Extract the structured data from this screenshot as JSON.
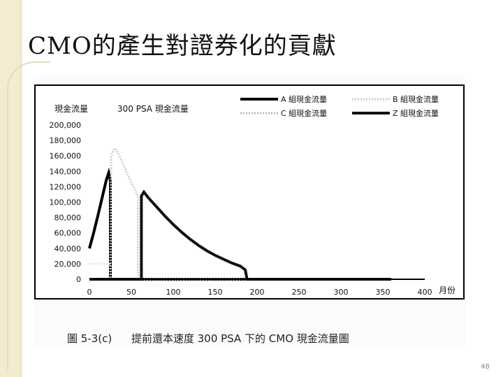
{
  "slide": {
    "title": "CMO的產生對證券化的貢獻",
    "page_number": "48"
  },
  "caption": {
    "figure_label": "圖 5-3(c)",
    "text": "提前還本速度 300 PSA 下的 CMO 現金流量圖"
  },
  "chart_data": {
    "type": "line",
    "title": "300 PSA 現金流量",
    "ylabel": "現金流量",
    "xlabel": "月份",
    "xlim": [
      0,
      400
    ],
    "ylim": [
      0,
      200000
    ],
    "x_ticks": [
      0,
      50,
      100,
      150,
      200,
      250,
      300,
      350,
      400
    ],
    "y_ticks": [
      "0",
      "20,000",
      "40,000",
      "60,000",
      "80,000",
      "100,000",
      "120,000",
      "140,000",
      "160,000",
      "180,000",
      "200,000"
    ],
    "legend_position": "top-right",
    "series": [
      {
        "name": "A 組現金流量",
        "color": "#000000",
        "style": "solid-thick",
        "points": [
          [
            0,
            40000
          ],
          [
            5,
            60000
          ],
          [
            10,
            82000
          ],
          [
            15,
            105000
          ],
          [
            20,
            128000
          ],
          [
            23,
            138000
          ],
          [
            25,
            128000
          ],
          [
            25,
            0
          ],
          [
            360,
            0
          ]
        ]
      },
      {
        "name": "B 組現金流量",
        "color": "#cccccc",
        "style": "dotted",
        "points": [
          [
            25,
            20000
          ],
          [
            26,
            160000
          ],
          [
            30,
            170000
          ],
          [
            35,
            162000
          ],
          [
            40,
            150000
          ],
          [
            45,
            137000
          ],
          [
            50,
            125000
          ],
          [
            55,
            115000
          ],
          [
            58,
            108000
          ],
          [
            58,
            0
          ]
        ]
      },
      {
        "name": "C 組現金流量",
        "color": "#e4e4e4",
        "style": "dotted",
        "points": [
          [
            0,
            20000
          ],
          [
            25,
            20000
          ],
          [
            25,
            0
          ],
          [
            360,
            0
          ]
        ]
      },
      {
        "name": "Z 組現金流量",
        "color": "#111111",
        "style": "solid-thick",
        "points": [
          [
            0,
            0
          ],
          [
            62,
            0
          ],
          [
            62,
            108000
          ],
          [
            65,
            113000
          ],
          [
            70,
            106000
          ],
          [
            80,
            94000
          ],
          [
            90,
            82000
          ],
          [
            100,
            71000
          ],
          [
            110,
            61000
          ],
          [
            120,
            52000
          ],
          [
            130,
            44000
          ],
          [
            140,
            37000
          ],
          [
            150,
            31000
          ],
          [
            160,
            26000
          ],
          [
            170,
            21000
          ],
          [
            180,
            17000
          ],
          [
            186,
            12000
          ],
          [
            188,
            0
          ],
          [
            360,
            0
          ]
        ]
      }
    ]
  }
}
